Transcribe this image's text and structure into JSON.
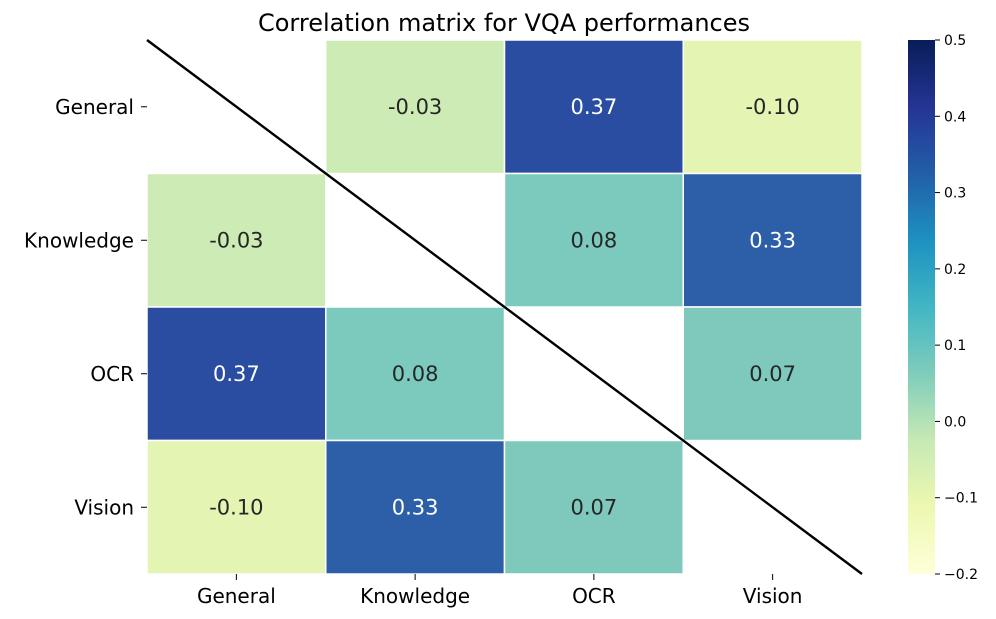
{
  "chart_data": {
    "type": "heatmap",
    "title": "Correlation matrix for VQA performances",
    "rows": [
      "General",
      "Knowledge",
      "OCR",
      "Vision"
    ],
    "columns": [
      "General",
      "Knowledge",
      "OCR",
      "Vision"
    ],
    "values": [
      [
        null,
        -0.03,
        0.37,
        -0.1
      ],
      [
        -0.03,
        null,
        0.08,
        0.33
      ],
      [
        0.37,
        0.08,
        null,
        0.07
      ],
      [
        -0.1,
        0.33,
        0.07,
        null
      ]
    ],
    "cell_labels": [
      [
        "",
        "-0.03",
        "0.37",
        "-0.10"
      ],
      [
        "-0.03",
        "",
        "0.08",
        "0.33"
      ],
      [
        "0.37",
        "0.08",
        "",
        "0.07"
      ],
      [
        "-0.10",
        "0.33",
        "0.07",
        ""
      ]
    ],
    "colorbar": {
      "colormap": "YlGnBu",
      "range": [
        -0.2,
        0.5
      ],
      "ticks": [
        0.5,
        0.4,
        0.3,
        0.2,
        0.1,
        0.0,
        -0.1,
        -0.2
      ],
      "tick_labels": [
        "0.5",
        "0.4",
        "0.3",
        "0.2",
        "0.1",
        "0.0",
        "−0.1",
        "−0.2"
      ]
    },
    "diagonal_line": true,
    "cell_colors": {
      "0.37": "#2b4da1",
      "0.33": "#2d5ea8",
      "0.08": "#7bcabd",
      "0.07": "#7ec9bc",
      "-0.03": "#cdebb4",
      "-0.10": "#e4f4b3"
    }
  }
}
